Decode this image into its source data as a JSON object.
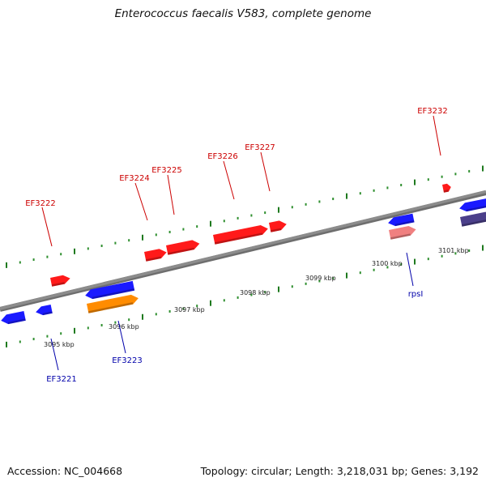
{
  "title": "Enterococcus faecalis V583, complete genome",
  "footer": {
    "accession": "Accession: NC_004668",
    "summary": "Topology: circular; Length: 3,218,031 bp; Genes: 3,192"
  },
  "colors": {
    "backbone": "#8c8c8c",
    "tick_dots": "#2f8f2f",
    "tick_major": "#1f7a1f",
    "forward_gene": "#ff1a1a",
    "reverse_gene": "#1a1aff",
    "orange_gene": "#ff8c00",
    "pink_gene": "#f08080",
    "purple_gene": "#4b3f8a",
    "forward_label": "#cc0000",
    "reverse_label": "#0000aa"
  },
  "scale_labels": [
    "3095 kbp",
    "3096 kbp",
    "3097 kbp",
    "3098 kbp",
    "3099 kbp",
    "3100 kbp",
    "3101 kbp"
  ],
  "forward_genes": [
    {
      "label": "EF3222",
      "color": "forward"
    },
    {
      "label": "EF3224",
      "color": "forward"
    },
    {
      "label": "EF3225",
      "color": "forward"
    },
    {
      "label": "EF3226",
      "color": "forward"
    },
    {
      "label": "EF3227",
      "color": "forward"
    },
    {
      "label": "EF3232",
      "color": "forward"
    }
  ],
  "reverse_genes": [
    {
      "label": "EF3221",
      "color": "reverse"
    },
    {
      "label": "EF3223",
      "color": "reverse"
    },
    {
      "label": "rpsI",
      "color": "reverse"
    }
  ]
}
